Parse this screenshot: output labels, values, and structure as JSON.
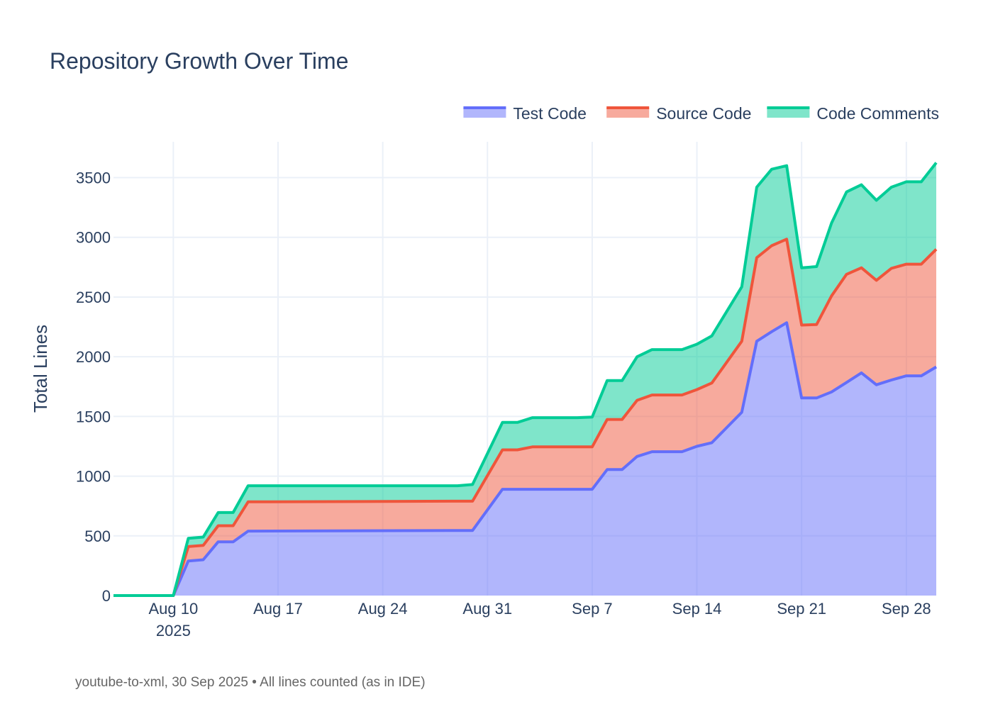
{
  "chart_data": {
    "type": "area",
    "stacked": true,
    "title": "Repository Growth Over Time",
    "xlabel": "",
    "ylabel": "Total Lines",
    "footnote": "youtube-to-xml, 30 Sep 2025 • All lines counted (as in IDE)",
    "x_ticks": [
      {
        "date": "2025-08-10",
        "label": "Aug 10",
        "sublabel": "2025"
      },
      {
        "date": "2025-08-17",
        "label": "Aug 17"
      },
      {
        "date": "2025-08-24",
        "label": "Aug 24"
      },
      {
        "date": "2025-08-31",
        "label": "Aug 31"
      },
      {
        "date": "2025-09-07",
        "label": "Sep 7"
      },
      {
        "date": "2025-09-14",
        "label": "Sep 14"
      },
      {
        "date": "2025-09-21",
        "label": "Sep 21"
      },
      {
        "date": "2025-09-28",
        "label": "Sep 28"
      }
    ],
    "xlim": [
      "2025-08-06",
      "2025-09-30"
    ],
    "ylim": [
      0,
      3800
    ],
    "y_ticks": [
      0,
      500,
      1000,
      1500,
      2000,
      2500,
      3000,
      3500
    ],
    "grid": true,
    "legend_position": "top-right",
    "x": [
      "2025-08-06",
      "2025-08-10",
      "2025-08-11",
      "2025-08-12",
      "2025-08-13",
      "2025-08-14",
      "2025-08-15",
      "2025-08-29",
      "2025-08-30",
      "2025-09-01",
      "2025-09-02",
      "2025-09-03",
      "2025-09-06",
      "2025-09-07",
      "2025-09-08",
      "2025-09-09",
      "2025-09-10",
      "2025-09-11",
      "2025-09-13",
      "2025-09-14",
      "2025-09-15",
      "2025-09-17",
      "2025-09-18",
      "2025-09-19",
      "2025-09-20",
      "2025-09-21",
      "2025-09-22",
      "2025-09-23",
      "2025-09-24",
      "2025-09-25",
      "2025-09-26",
      "2025-09-27",
      "2025-09-28",
      "2025-09-29",
      "2025-09-30"
    ],
    "series": [
      {
        "name": "Test Code",
        "color": "#636efa",
        "fill": "rgba(99,110,250,0.5)",
        "values": [
          0,
          0,
          290,
          300,
          450,
          450,
          540,
          545,
          545,
          890,
          890,
          890,
          890,
          890,
          1055,
          1055,
          1165,
          1205,
          1205,
          1250,
          1280,
          1535,
          2130,
          2210,
          2285,
          1655,
          1655,
          1705,
          1785,
          1865,
          1765,
          1805,
          1840,
          1840,
          1915
        ]
      },
      {
        "name": "Source Code",
        "color": "#ef553b",
        "fill": "rgba(239,85,59,0.5)",
        "values": [
          0,
          0,
          120,
          120,
          135,
          135,
          245,
          245,
          245,
          330,
          330,
          355,
          355,
          355,
          420,
          420,
          470,
          475,
          475,
          475,
          500,
          595,
          700,
          720,
          700,
          610,
          615,
          805,
          905,
          880,
          875,
          935,
          935,
          935,
          985
        ]
      },
      {
        "name": "Code Comments",
        "color": "#00cc96",
        "fill": "rgba(0,204,150,0.5)",
        "values": [
          0,
          0,
          70,
          70,
          110,
          110,
          135,
          130,
          140,
          230,
          230,
          245,
          245,
          250,
          325,
          325,
          365,
          380,
          380,
          380,
          395,
          455,
          590,
          640,
          615,
          480,
          485,
          610,
          690,
          695,
          670,
          680,
          690,
          690,
          725
        ]
      }
    ]
  }
}
